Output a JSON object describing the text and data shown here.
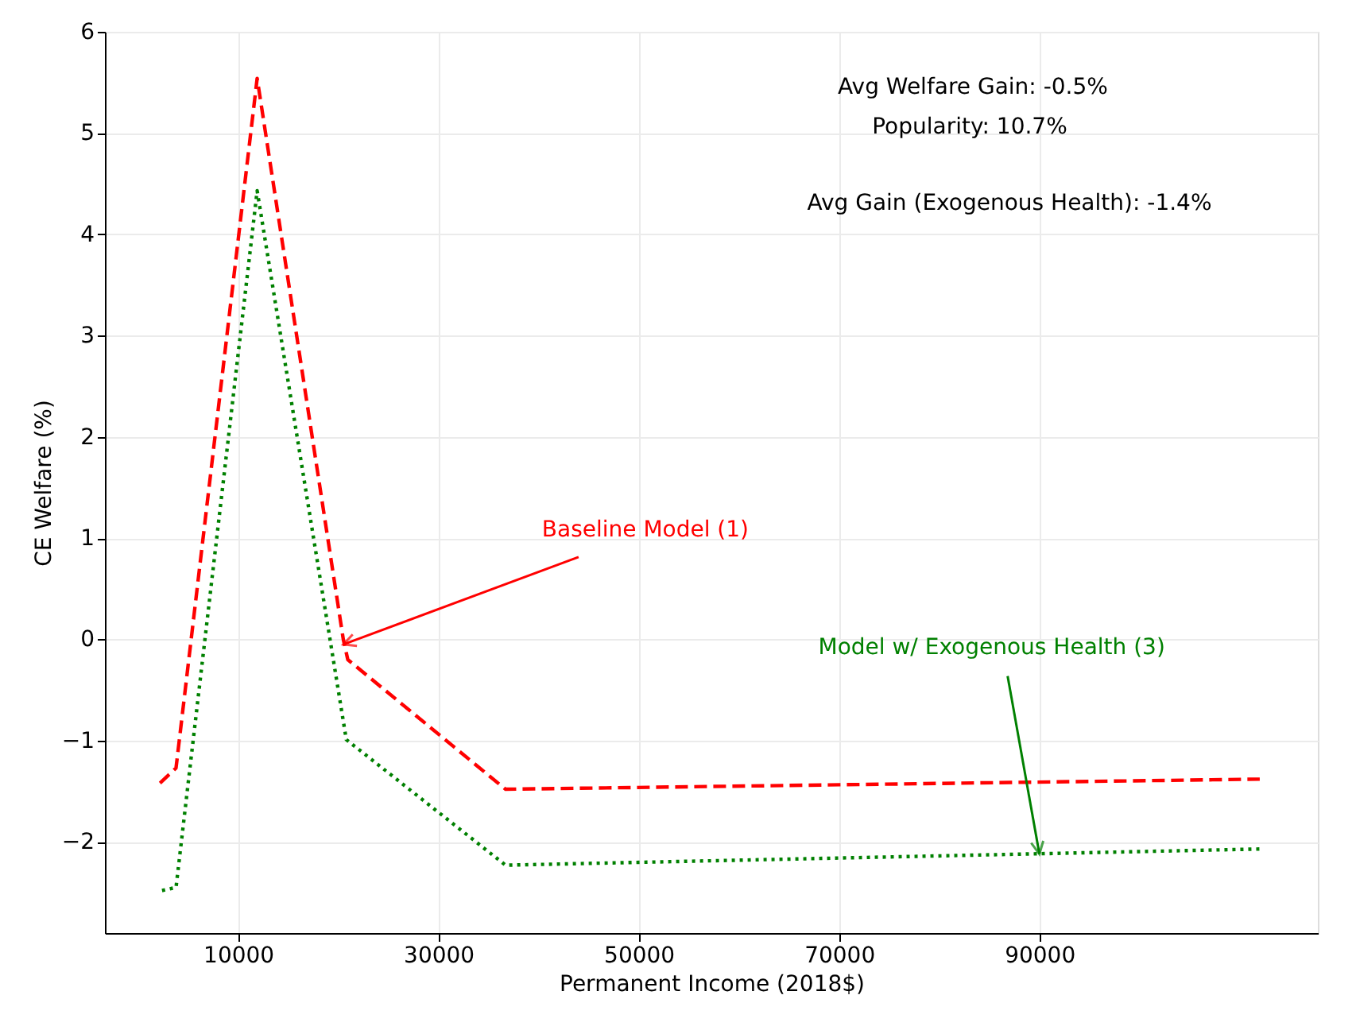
{
  "chart_data": {
    "type": "line",
    "xlabel": "Permanent Income (2018$)",
    "ylabel": "CE Welfare (%)",
    "xlim": [
      -3300,
      117800
    ],
    "xticks": [
      10000,
      30000,
      50000,
      70000,
      90000
    ],
    "ylim": [
      -2.9,
      6
    ],
    "yticks": [
      -2,
      -1,
      0,
      1,
      2,
      3,
      4,
      5,
      6
    ],
    "grid": true,
    "series": [
      {
        "color": "#ff0000",
        "line_style": "dashed",
        "x": [
          2200,
          3800,
          11900,
          20500,
          20950,
          36700,
          112000
        ],
        "values": [
          -1.42,
          -1.27,
          5.54,
          0.0,
          -0.2,
          -1.48,
          -1.38
        ]
      },
      {
        "color": "#008000",
        "line_style": "dotted",
        "x": [
          2400,
          3800,
          11900,
          20800,
          36700,
          112000
        ],
        "values": [
          -2.48,
          -2.45,
          4.43,
          -0.99,
          -2.23,
          -2.07
        ]
      }
    ],
    "annotations": [
      {
        "text": "Baseline Model (1)",
        "x": 20500,
        "y": -0.05
      },
      {
        "text": "Model w/ Exogenous Health (3)",
        "x": 90000,
        "y": -2.12
      },
      "Avg Welfare Gain: -0.5%",
      "Popularity: 10.7%",
      "Avg Gain (Exogenous Health): -1.4%"
    ]
  }
}
